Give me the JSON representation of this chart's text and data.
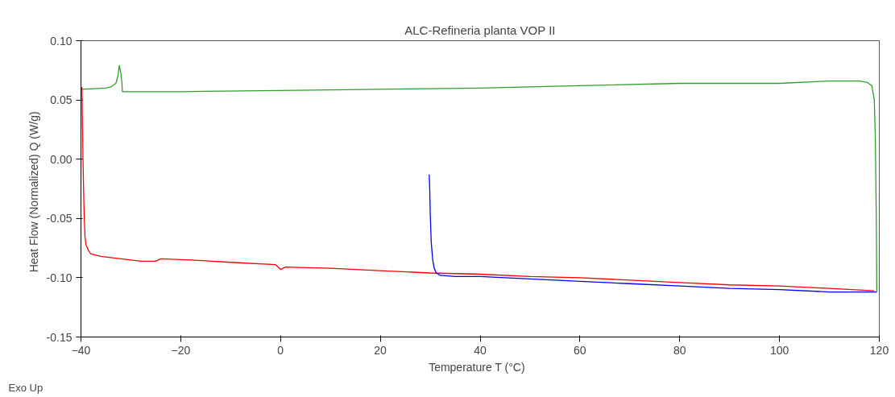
{
  "chart_data": {
    "type": "line",
    "title": "ALC-Refineria planta VOP II",
    "xlabel": "Temperature  T  (°C)",
    "ylabel": "Heat Flow (Normalized)  Q  (W/g)",
    "annotations": [
      "Exo Up"
    ],
    "xlim": [
      -40,
      120
    ],
    "xticks": [
      -40,
      -20,
      0,
      20,
      40,
      60,
      80,
      100,
      120
    ],
    "ylim": [
      -0.15,
      0.1
    ],
    "yticks": [
      {
        "value": -0.15,
        "label": "-0.15"
      },
      {
        "value": -0.1,
        "label": "-0.10"
      },
      {
        "value": -0.05,
        "label": "-0.05"
      },
      {
        "value": 0,
        "label": "0.00"
      },
      {
        "value": 0.05,
        "label": "0.05"
      },
      {
        "value": 0.1,
        "label": "0.10"
      }
    ],
    "grid": false,
    "line_style": "solid",
    "marker": "none",
    "series": [
      {
        "color": "#2ca02c",
        "x": [
          -40,
          -35,
          -34,
          -33,
          -32.6,
          -32.3,
          -32.0,
          -31.8,
          -31.7,
          -20,
          0,
          20,
          40,
          60,
          80,
          100,
          110,
          116,
          117.5,
          118.5,
          119,
          119.2,
          119.4,
          119.5
        ],
        "values": [
          0.059,
          0.06,
          0.061,
          0.064,
          0.07,
          0.079,
          0.072,
          0.065,
          0.057,
          0.057,
          0.058,
          0.059,
          0.06,
          0.062,
          0.064,
          0.064,
          0.066,
          0.066,
          0.065,
          0.062,
          0.05,
          0.02,
          -0.05,
          -0.112
        ]
      },
      {
        "color": "#ff0000",
        "x": [
          -39.8,
          -39.6,
          -39.4,
          -39.2,
          -39,
          -38.5,
          -38,
          -36,
          -32,
          -28,
          -25,
          -24,
          -18,
          -10,
          -1,
          0,
          1,
          10,
          20,
          30,
          40,
          50,
          60,
          70,
          80,
          90,
          100,
          110,
          119
        ],
        "values": [
          0.061,
          0.0,
          -0.04,
          -0.065,
          -0.072,
          -0.077,
          -0.08,
          -0.082,
          -0.084,
          -0.086,
          -0.086,
          -0.084,
          -0.085,
          -0.087,
          -0.089,
          -0.093,
          -0.091,
          -0.092,
          -0.094,
          -0.096,
          -0.097,
          -0.099,
          -0.1,
          -0.102,
          -0.104,
          -0.106,
          -0.107,
          -0.109,
          -0.111
        ]
      },
      {
        "color": "#0000ff",
        "x": [
          29.8,
          29.9,
          30.0,
          30.2,
          30.5,
          30.8,
          31.2,
          32,
          35,
          40,
          50,
          60,
          70,
          80,
          90,
          100,
          110,
          119.5
        ],
        "values": [
          -0.013,
          -0.025,
          -0.045,
          -0.07,
          -0.085,
          -0.092,
          -0.096,
          -0.098,
          -0.099,
          -0.099,
          -0.101,
          -0.103,
          -0.105,
          -0.107,
          -0.109,
          -0.11,
          -0.112,
          -0.112
        ]
      }
    ]
  }
}
